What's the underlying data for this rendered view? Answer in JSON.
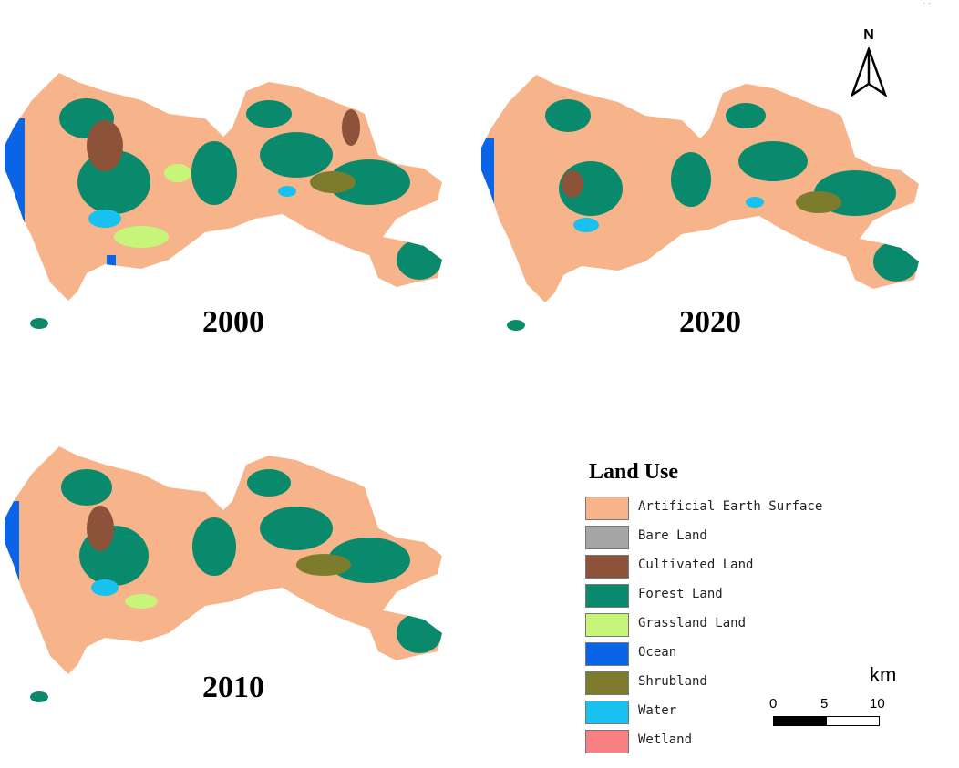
{
  "maps": [
    {
      "year": "2000"
    },
    {
      "year": "2020"
    },
    {
      "year": "2010"
    }
  ],
  "north_arrow": {
    "label": "N"
  },
  "legend": {
    "title": "Land Use",
    "items": [
      {
        "label": "Artificial Earth Surface",
        "color": "#f7b38a"
      },
      {
        "label": "Bare  Land",
        "color": "#a6a6a6"
      },
      {
        "label": "Cultivated Land",
        "color": "#8c523a"
      },
      {
        "label": "Forest Land",
        "color": "#0a8a6c"
      },
      {
        "label": "Grassland Land",
        "color": "#c6f57a"
      },
      {
        "label": "Ocean",
        "color": "#0a64e8"
      },
      {
        "label": "Shrubland",
        "color": "#7c7c2c"
      },
      {
        "label": "Water",
        "color": "#19c1f0"
      },
      {
        "label": "Wetland",
        "color": "#f88082"
      }
    ]
  },
  "scale_bar": {
    "unit": "km",
    "ticks": [
      "0",
      "5",
      "10"
    ]
  }
}
